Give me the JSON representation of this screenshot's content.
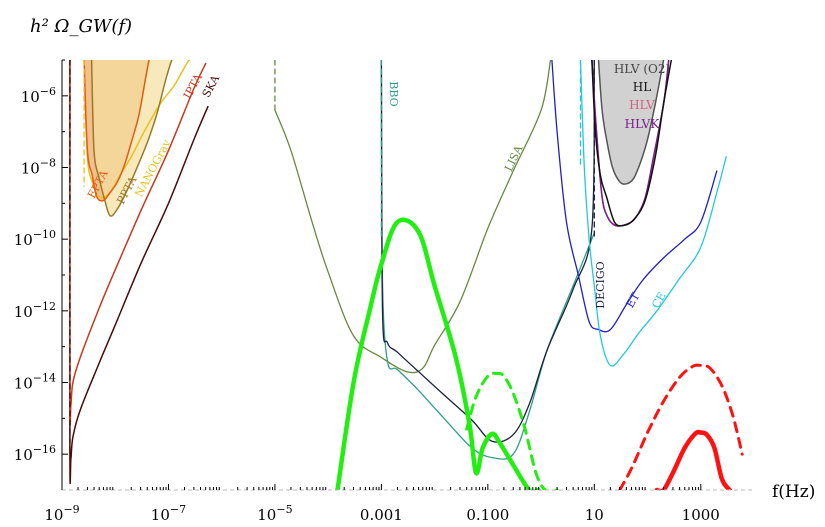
{
  "chart_data": {
    "type": "line",
    "title": "",
    "ylabel": "h² Ω_GW(f)",
    "xlabel": "f(Hz)",
    "x_scale": "log",
    "y_scale": "log",
    "xlim": [
      1e-09,
      10000
    ],
    "ylim": [
      1e-17,
      1e-05
    ],
    "x_ticks": [
      {
        "value": 1e-09,
        "label": "10^-9"
      },
      {
        "value": 1e-07,
        "label": "10^-7"
      },
      {
        "value": 1e-05,
        "label": "10^-5"
      },
      {
        "value": 0.001,
        "label": "0.001"
      },
      {
        "value": 0.1,
        "label": "0.100"
      },
      {
        "value": 10,
        "label": "10"
      },
      {
        "value": 1000,
        "label": "1000"
      }
    ],
    "y_ticks": [
      {
        "value": 1e-06,
        "label": "10^-6"
      },
      {
        "value": 1e-08,
        "label": "10^-8"
      },
      {
        "value": 1e-10,
        "label": "10^-10"
      },
      {
        "value": 1e-12,
        "label": "10^-12"
      },
      {
        "value": 1e-14,
        "label": "10^-14"
      },
      {
        "value": 1e-16,
        "label": "10^-16"
      }
    ],
    "grid": false,
    "legend": "none",
    "annotations": {
      "EPTA": "EPTA",
      "PPTA": "PPTA",
      "NANOGrav": "NANOGrav",
      "IPTA": "IPTA",
      "SKA": "SKA",
      "BBO": "BBO",
      "LISA": "LISA",
      "DECIGO": "DECIGO",
      "ET": "ET",
      "CE": "CE",
      "HLV_O2": "HLV (O2)",
      "HL": "HL",
      "HLV": "HLV",
      "HLVK": "HLVK"
    },
    "series": [
      {
        "id": "ska",
        "color": "#4a0a0a",
        "width": 1.5,
        "dash": false,
        "x": [
          1.41e-09,
          1.41e-09,
          1.47e-09,
          1.6e-09,
          2.2e-09,
          5e-09,
          1e-08,
          3e-08,
          1e-07,
          3e-07,
          5.5e-07
        ],
        "y": [
          1e-05,
          1.2e-16,
          7.5e-17,
          3e-16,
          1.7e-15,
          3.5e-14,
          4e-13,
          2e-11,
          1e-09,
          6e-08,
          5e-07
        ]
      },
      {
        "id": "ipta",
        "color": "#c8371d",
        "width": 1.5,
        "dash": false,
        "x": [
          1.41e-09,
          1.41e-09,
          1.47e-09,
          1.6e-09,
          2.2e-09,
          5e-09,
          1e-08,
          3e-08,
          1e-07,
          3e-07,
          5e-07
        ],
        "y": [
          1e-05,
          4e-15,
          2.4e-15,
          1e-14,
          5e-14,
          1.2e-12,
          1.4e-11,
          6e-10,
          3e-08,
          1.6e-06,
          8e-06
        ]
      },
      {
        "id": "nanograv",
        "color": "#e8c21b",
        "width": 1.5,
        "dash": false,
        "x": [
          2.6e-09,
          3e-09,
          3.7e-09,
          5e-09,
          8e-09,
          1.3e-08,
          2e-08,
          3.5e-08,
          7e-08,
          1.3e-07,
          2.2e-07,
          2.5e-07
        ],
        "y": [
          1e-05,
          2e-08,
          4e-09,
          1.5e-09,
          2e-09,
          7e-09,
          2e-08,
          1e-07,
          6e-07,
          2e-06,
          8e-06,
          1e-05
        ]
      },
      {
        "id": "ppta",
        "color": "#9a7a25",
        "width": 1.5,
        "dash": false,
        "x": [
          3.6e-09,
          4e-09,
          5e-09,
          6.3e-09,
          8e-09,
          1.1e-08,
          1.6e-08,
          2.5e-08,
          4e-08,
          6e-08,
          9e-08,
          1.15e-07
        ],
        "y": [
          1e-05,
          3e-08,
          5e-09,
          1.3e-09,
          4.5e-10,
          7e-10,
          2e-09,
          9e-09,
          5e-08,
          3e-07,
          3e-06,
          1e-05
        ]
      },
      {
        "id": "epta",
        "color": "#e35c10",
        "width": 1.5,
        "dash": false,
        "x": [
          2.6e-09,
          3e-09,
          3.7e-09,
          4.5e-09,
          6e-09,
          8e-09,
          1.1e-08,
          1.5e-08,
          2e-08,
          2.8e-08,
          3.7e-08,
          4.3e-08
        ],
        "y": [
          1e-05,
          3e-08,
          6e-09,
          1.5e-09,
          1.2e-09,
          2e-09,
          4e-09,
          1.2e-08,
          5e-08,
          3e-07,
          3e-06,
          1e-05
        ]
      },
      {
        "id": "lisa",
        "color": "#67883f",
        "width": 1.3,
        "dash": false,
        "x": [
          1e-05,
          2e-05,
          5e-05,
          0.0001,
          0.0003,
          0.001,
          0.003,
          0.006,
          0.01,
          0.03,
          0.1,
          0.3,
          1,
          1.5
        ],
        "y": [
          4e-07,
          3e-08,
          3e-10,
          1.2e-11,
          2e-13,
          5e-14,
          2e-14,
          2.5e-14,
          1.1e-13,
          1.8e-12,
          2e-10,
          8e-09,
          4e-07,
          1e-05
        ]
      },
      {
        "id": "bbo",
        "color": "#2f9e8a",
        "width": 1.3,
        "dash": false,
        "x": [
          0.001,
          0.00105,
          0.0013,
          0.002,
          0.005,
          0.015,
          0.05,
          0.12,
          0.3,
          0.6,
          1.3,
          4,
          10.0
        ],
        "y": [
          1e-05,
          7e-12,
          4e-14,
          2.3e-14,
          6e-15,
          1e-15,
          1.5e-16,
          8e-17,
          1e-16,
          1.5e-15,
          8e-14,
          5e-12,
          1.5e-10
        ]
      },
      {
        "id": "decigo",
        "color": "#1a2040",
        "width": 1.3,
        "dash": false,
        "x": [
          0.001,
          0.00105,
          0.0013,
          0.002,
          0.005,
          0.015,
          0.05,
          0.12,
          0.3,
          0.6,
          1.3,
          4,
          9,
          10.0
        ],
        "y": [
          1e-05,
          1e-12,
          1.3e-13,
          7e-14,
          2e-14,
          4.5e-15,
          9e-16,
          2.3e-16,
          3.5e-16,
          2.5e-15,
          8e-14,
          4e-12,
          2e-10,
          1e-05
        ]
      },
      {
        "id": "et",
        "color": "#2020c0",
        "width": 1.3,
        "dash": false,
        "x": [
          1.6,
          2,
          3,
          5,
          8,
          12,
          20,
          40,
          80,
          200,
          500,
          1000,
          2000
        ],
        "y": [
          1e-05,
          1e-07,
          3e-10,
          1e-11,
          5e-13,
          3e-13,
          3e-13,
          1.5e-12,
          7e-12,
          3e-11,
          1e-10,
          3e-10,
          8e-09
        ]
      },
      {
        "id": "ce",
        "color": "#22c8dd",
        "width": 1.3,
        "dash": false,
        "x": [
          5.5,
          6.5,
          8,
          10,
          13,
          20,
          35,
          70,
          150,
          400,
          1000,
          2000,
          3000
        ],
        "y": [
          1e-05,
          1e-08,
          1e-10,
          5e-12,
          2e-13,
          3e-14,
          6e-14,
          2.5e-13,
          1e-12,
          8e-12,
          6e-11,
          2e-09,
          2e-08
        ]
      },
      {
        "id": "ce-dash",
        "color": "#22c8dd",
        "width": 1.3,
        "dash": true,
        "x": [
          5.5,
          5.5
        ],
        "y": [
          1e-05,
          1e-08
        ]
      },
      {
        "id": "bbo-dash",
        "color": "#2f9e8a",
        "width": 1.3,
        "dash": true,
        "x": [
          0.001,
          0.001
        ],
        "y": [
          1e-05,
          1e-10
        ]
      },
      {
        "id": "lisa-dash",
        "color": "#67883f",
        "width": 1.3,
        "dash": true,
        "x": [
          1e-05,
          1e-05
        ],
        "y": [
          1e-05,
          4e-07
        ]
      },
      {
        "id": "decigo-dash",
        "color": "#1a2040",
        "width": 1.3,
        "dash": true,
        "x": [
          10.0,
          10.0
        ],
        "y": [
          1e-05,
          1e-10
        ]
      },
      {
        "id": "pta-dash",
        "color": "#4a0a0a",
        "width": 1.3,
        "dash": true,
        "x": [
          1.41e-09,
          1.41e-09
        ],
        "y": [
          1e-05,
          1e-16
        ]
      },
      {
        "id": "nanograv-dash",
        "color": "#e8c21b",
        "width": 1.3,
        "dash": true,
        "x": [
          2.6e-09,
          2.6e-09
        ],
        "y": [
          1e-05,
          3e-09
        ]
      },
      {
        "id": "hlv",
        "color": "#d06080",
        "width": 1.5,
        "dash": false,
        "x": [
          9,
          11,
          14,
          18,
          25,
          40,
          60,
          90,
          130,
          200,
          250
        ],
        "y": [
          1e-05,
          1e-07,
          1.5e-09,
          4e-10,
          2.4e-10,
          2.6e-10,
          4e-10,
          1.4e-09,
          2e-08,
          6e-07,
          1e-05
        ]
      },
      {
        "id": "hlvk",
        "color": "#7a1d8a",
        "width": 1.5,
        "dash": false,
        "x": [
          9,
          11,
          14,
          18,
          25,
          40,
          60,
          90,
          130,
          200,
          250
        ],
        "y": [
          1e-05,
          1e-07,
          1.5e-09,
          4e-10,
          2.4e-10,
          2.6e-10,
          4e-10,
          1.4e-09,
          2e-08,
          6e-07,
          1e-05
        ]
      },
      {
        "id": "hl",
        "color": "#111111",
        "width": 1.5,
        "dash": false,
        "x": [
          9,
          10.5,
          13,
          17,
          24,
          35,
          55,
          90,
          140,
          200,
          280
        ],
        "y": [
          1e-05,
          1e-07,
          6e-09,
          1.5e-09,
          3e-10,
          2.4e-10,
          3.5e-10,
          1.2e-09,
          2e-08,
          6e-07,
          1e-05
        ]
      },
      {
        "id": "hlv-o2",
        "color": "#555555",
        "width": 1.5,
        "dash": false,
        "x": [
          12,
          14,
          17,
          22,
          30,
          40,
          55,
          75,
          100,
          140,
          200
        ],
        "y": [
          1e-05,
          4e-07,
          6e-08,
          1e-08,
          4e-09,
          3.5e-09,
          5e-09,
          1.5e-08,
          6e-08,
          6e-07,
          1e-05
        ]
      },
      {
        "id": "signal-green-solid",
        "color": "#22ee11",
        "width": 4.5,
        "dash": false,
        "x": [
          0.00015,
          0.0003,
          0.0006,
          0.001,
          0.002,
          0.005,
          0.01,
          0.025,
          0.045,
          0.06,
          0.08,
          0.12,
          0.17,
          0.3,
          0.6,
          0.9
        ],
        "y": [
          1e-17,
          1e-14,
          1e-12,
          2e-11,
          3e-10,
          1.6e-10,
          5e-12,
          5e-14,
          7e-16,
          3e-17,
          1.5e-16,
          3.7e-16,
          2e-16,
          5e-17,
          1e-17,
          1e-17
        ]
      },
      {
        "id": "signal-green-dashed",
        "color": "#22ee11",
        "width": 3,
        "dash": true,
        "x": [
          0.04,
          0.06,
          0.1,
          0.15,
          0.2,
          0.3,
          0.5,
          0.8,
          1.2,
          2
        ],
        "y": [
          5e-16,
          4e-15,
          1.5e-14,
          1.8e-14,
          1.5e-14,
          5e-15,
          5e-16,
          3e-17,
          1e-17,
          1e-17
        ]
      },
      {
        "id": "signal-red-solid",
        "color": "#ff1111",
        "width": 4.5,
        "dash": false,
        "x": [
          150,
          200,
          300,
          500,
          800,
          1000,
          1300,
          1800,
          2500,
          3500
        ],
        "y": [
          1e-17,
          1e-17,
          3e-17,
          1.5e-16,
          3.8e-16,
          4e-16,
          3.5e-16,
          1.5e-16,
          2e-17,
          1e-17
        ]
      },
      {
        "id": "signal-red-dashed",
        "color": "#ff1111",
        "width": 3,
        "dash": true,
        "x": [
          30,
          50,
          100,
          200,
          400,
          700,
          1000,
          1500,
          2500,
          4000,
          6000
        ],
        "y": [
          1e-17,
          4e-17,
          4e-16,
          3e-15,
          1.4e-14,
          2.8e-14,
          3e-14,
          2.5e-14,
          8e-15,
          1.2e-15,
          1e-16
        ]
      }
    ],
    "filled_regions": [
      {
        "id": "pta-excluded",
        "fill": "#f0b47a",
        "opacity": 0.85,
        "bounded_by": "epta"
      },
      {
        "id": "ppta-excluded",
        "fill": "#f5dfa0",
        "opacity": 0.7,
        "bounded_by": "ppta"
      },
      {
        "id": "hlv-o2-excluded",
        "fill": "#cccccc",
        "opacity": 0.9,
        "bounded_by": "hlv-o2"
      }
    ]
  }
}
